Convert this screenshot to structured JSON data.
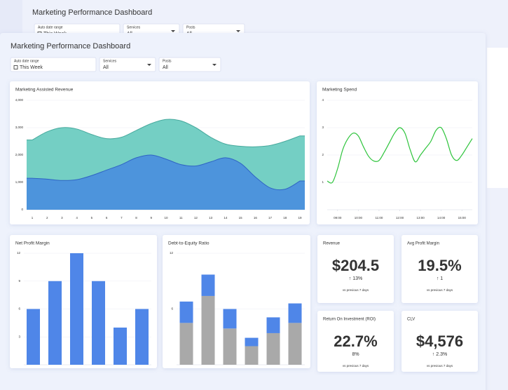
{
  "background_window": {
    "title": "Marketing Performance Dashboard",
    "filters": [
      {
        "label": "Auto date range",
        "value": "This Week"
      },
      {
        "label": "Services",
        "value": "All"
      },
      {
        "label": "Posts",
        "value": "All"
      }
    ]
  },
  "header": {
    "title": "Marketing Performance Dashboard"
  },
  "filters": [
    {
      "label": "Auto date range",
      "value": "This Week"
    },
    {
      "label": "Services",
      "value": "All"
    },
    {
      "label": "Posts",
      "value": "All"
    }
  ],
  "chart_data": [
    {
      "type": "area",
      "title": "Marketing Assisted Revenue",
      "categories": [
        1,
        2,
        3,
        4,
        5,
        6,
        7,
        8,
        9,
        10,
        11,
        12,
        13,
        14,
        15,
        16,
        17,
        18,
        19
      ],
      "series": [
        {
          "color": "#74cfc4",
          "values": [
            2550,
            2850,
            3000,
            2950,
            2750,
            2600,
            2650,
            2900,
            3150,
            3300,
            3250,
            3000,
            2650,
            2400,
            2320,
            2300,
            2350,
            2500,
            2700
          ]
        },
        {
          "color": "#4d94dc",
          "values": [
            1150,
            1120,
            1070,
            1100,
            1250,
            1450,
            1650,
            1900,
            2000,
            1850,
            1650,
            1600,
            1750,
            1900,
            1700,
            1200,
            800,
            750,
            1050
          ]
        }
      ],
      "ylim": [
        0,
        4000
      ],
      "yticks": [
        0,
        {
          "value": 1000,
          "label": "1,000"
        },
        {
          "value": 2000,
          "label": "2,000"
        },
        {
          "value": 3000,
          "label": "3,000"
        },
        {
          "value": 4000,
          "label": "4,000"
        }
      ],
      "grid": true
    },
    {
      "type": "line",
      "title": "Marketing Spend",
      "x": [
        8.5,
        8.75,
        9,
        9.25,
        9.5,
        9.75,
        10,
        10.25,
        10.5,
        10.75,
        11,
        11.25,
        11.5,
        11.75,
        12,
        12.25,
        12.5,
        12.75,
        13,
        13.25,
        13.5,
        13.75,
        14,
        14.25,
        14.5,
        14.75,
        15,
        15.25,
        15.5
      ],
      "series": [
        {
          "color": "#2ec43c",
          "values": [
            1.05,
            1.0,
            1.5,
            2.2,
            2.6,
            2.8,
            2.7,
            2.3,
            1.95,
            1.78,
            1.8,
            2.1,
            2.45,
            2.8,
            3.0,
            2.8,
            2.2,
            1.75,
            2.0,
            2.25,
            2.5,
            2.9,
            3.0,
            2.6,
            2.0,
            1.8,
            2.0,
            2.3,
            2.6
          ]
        }
      ],
      "xlim": [
        8.5,
        15.5
      ],
      "xticks": [
        {
          "value": 9,
          "label": "09:00"
        },
        {
          "value": 10,
          "label": "10:00"
        },
        {
          "value": 11,
          "label": "11:00"
        },
        {
          "value": 12,
          "label": "12:00"
        },
        {
          "value": 13,
          "label": "13:00"
        },
        {
          "value": 14,
          "label": "14:00"
        },
        {
          "value": 15,
          "label": "15:00"
        }
      ],
      "ylim": [
        0,
        4
      ],
      "yticks": [
        1,
        2,
        3,
        4
      ],
      "grid": true
    },
    {
      "type": "bar",
      "title": "Net Profit Margin",
      "color": "#4f86e8",
      "values": [
        6,
        9,
        12,
        9,
        4,
        6
      ],
      "ylim": [
        0,
        12
      ],
      "yticks": [
        3,
        6,
        9,
        12
      ],
      "grid": true
    },
    {
      "type": "stacked_bar",
      "title": "Debt-to-Equity Ratio",
      "series": [
        {
          "color": "#a9a9a9",
          "values": [
            4.5,
            7.4,
            3.9,
            2.0,
            3.4,
            4.5
          ]
        },
        {
          "color": "#4f86e8",
          "values": [
            2.3,
            2.3,
            2.1,
            0.9,
            1.7,
            2.1
          ]
        }
      ],
      "ylim": [
        0,
        12
      ],
      "yticks": [
        6,
        12
      ],
      "grid": true
    }
  ],
  "kpis": [
    {
      "title": "Revenue",
      "value": "$204.5",
      "change": "↑ 13%",
      "note": "vs previous 7 days"
    },
    {
      "title": "Avg Profit Margin",
      "value": "19.5%",
      "change": "↑ 1",
      "note": "vs previous 7 days"
    },
    {
      "title": "Return On Investment (ROI)",
      "value": "22.7%",
      "change": "8%",
      "note": "vs previous 7 days"
    },
    {
      "title": "CLV",
      "value": "$4,576",
      "change": "↑ 2.3%",
      "note": "vs previous 7 days"
    }
  ]
}
